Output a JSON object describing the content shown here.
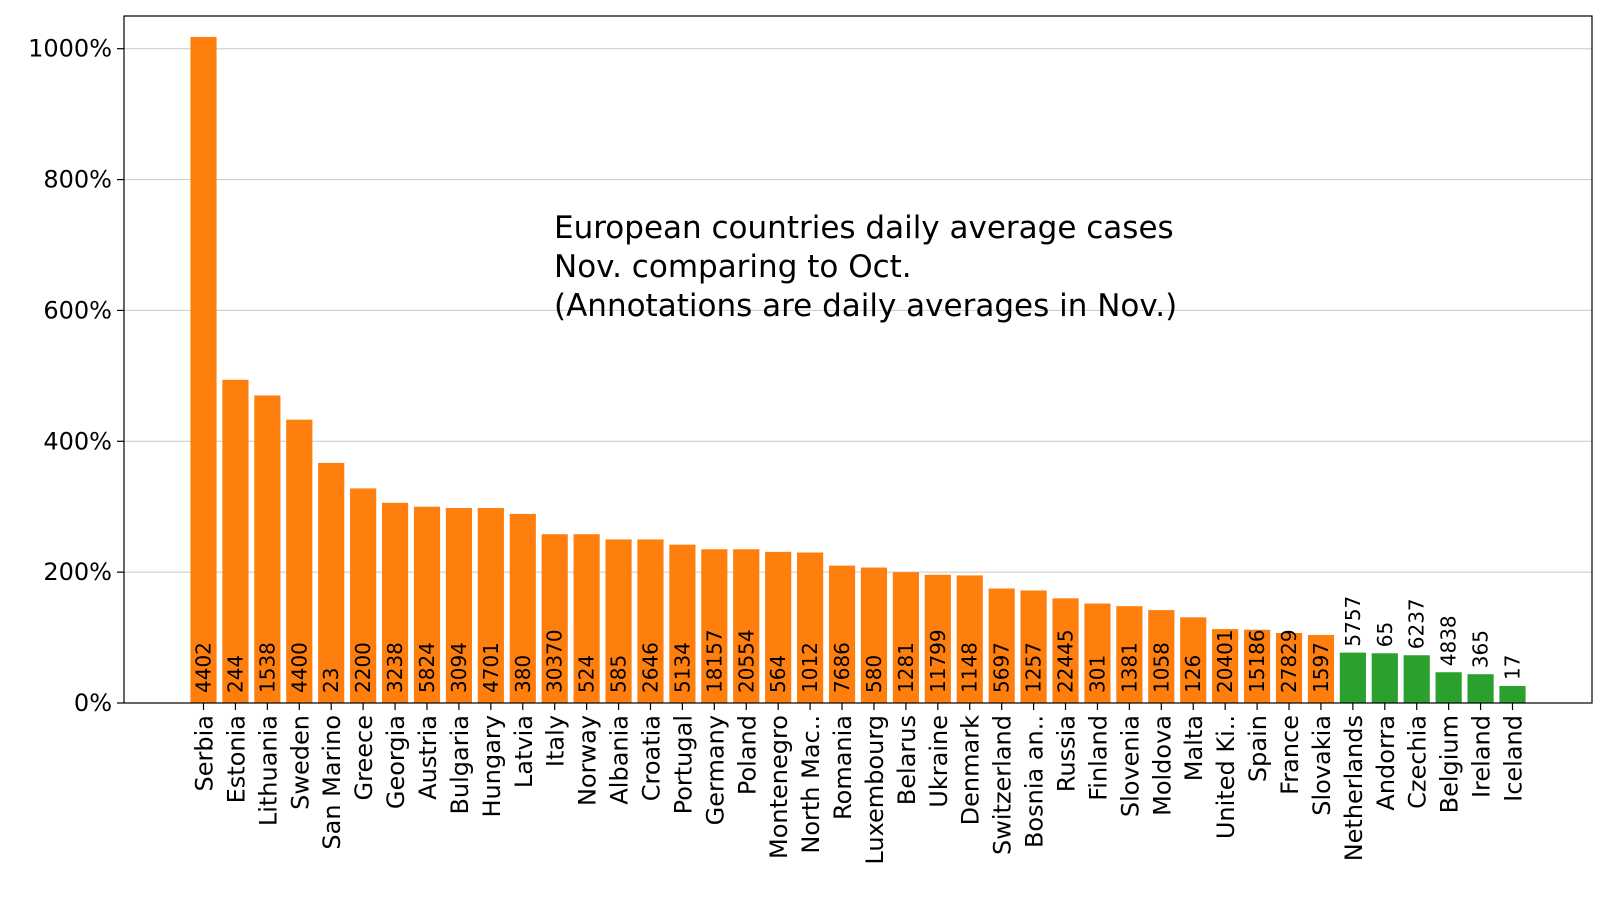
{
  "chart_data": {
    "type": "bar",
    "title_lines": [
      "European countries daily average cases",
      "Nov. comparing to Oct.",
      "(Annotations are daily averages in Nov.)"
    ],
    "ylim": [
      0,
      1050
    ],
    "yticks": [
      0,
      200,
      400,
      600,
      800,
      1000
    ],
    "ytick_labels": [
      "0%",
      "200%",
      "400%",
      "600%",
      "800%",
      "1000%"
    ],
    "grid": "y",
    "colors": {
      "increase": "#ff7f0e",
      "decrease": "#2ca02c"
    },
    "categories": [
      "Serbia",
      "Estonia",
      "Lithuania",
      "Sweden",
      "San Marino",
      "Greece",
      "Georgia",
      "Austria",
      "Bulgaria",
      "Hungary",
      "Latvia",
      "Italy",
      "Norway",
      "Albania",
      "Croatia",
      "Portugal",
      "Germany",
      "Poland",
      "Montenegro",
      "North Mac..",
      "Romania",
      "Luxembourg",
      "Belarus",
      "Ukraine",
      "Denmark",
      "Switzerland",
      "Bosnia an..",
      "Russia",
      "Finland",
      "Slovenia",
      "Moldova",
      "Malta",
      "United Ki..",
      "Spain",
      "France",
      "Slovakia",
      "Netherlands",
      "Andorra",
      "Czechia",
      "Belgium",
      "Ireland",
      "Iceland"
    ],
    "values": [
      1018,
      494,
      470,
      433,
      367,
      328,
      306,
      300,
      298,
      298,
      289,
      258,
      258,
      250,
      250,
      242,
      235,
      235,
      231,
      230,
      210,
      207,
      200,
      196,
      195,
      175,
      172,
      160,
      152,
      148,
      142,
      131,
      113,
      112,
      107,
      104,
      77,
      76,
      73,
      47,
      44,
      26
    ],
    "annotations": [
      "4402",
      "244",
      "1538",
      "4400",
      "23",
      "2200",
      "3238",
      "5824",
      "3094",
      "4701",
      "380",
      "30370",
      "524",
      "585",
      "2646",
      "5134",
      "18157",
      "20554",
      "564",
      "1012",
      "7686",
      "580",
      "1281",
      "11799",
      "1148",
      "5697",
      "1257",
      "22445",
      "301",
      "1381",
      "1058",
      "126",
      "20401",
      "15186",
      "27829",
      "1597",
      "5757",
      "65",
      "6237",
      "4838",
      "365",
      "17"
    ]
  }
}
